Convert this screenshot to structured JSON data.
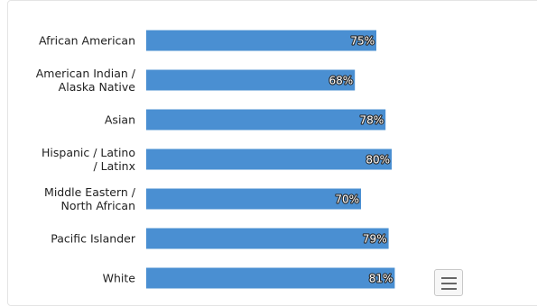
{
  "chart_data": {
    "type": "bar",
    "orientation": "horizontal",
    "categories": [
      [
        "African American"
      ],
      [
        "American Indian /",
        "Alaska Native"
      ],
      [
        "Asian"
      ],
      [
        "Hispanic / Latino",
        "/ Latinx"
      ],
      [
        "Middle Eastern /",
        "North African"
      ],
      [
        "Pacific Islander"
      ],
      [
        "White"
      ]
    ],
    "values": [
      75,
      68,
      78,
      80,
      70,
      79,
      81
    ],
    "value_labels": [
      "75%",
      "68%",
      "78%",
      "80%",
      "70%",
      "79%",
      "81%"
    ],
    "xlim": [
      0,
      100
    ],
    "grid": false,
    "bar_color": "#4a8fd2"
  },
  "icons": {
    "export_menu": "hamburger-menu-icon"
  }
}
